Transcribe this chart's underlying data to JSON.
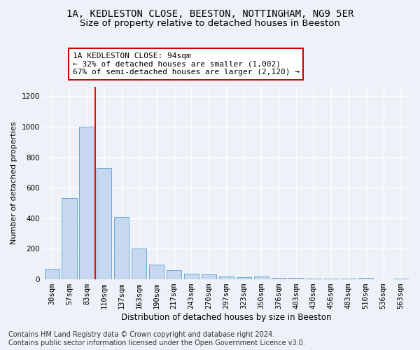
{
  "title_line1": "1A, KEDLESTON CLOSE, BEESTON, NOTTINGHAM, NG9 5ER",
  "title_line2": "Size of property relative to detached houses in Beeston",
  "xlabel": "Distribution of detached houses by size in Beeston",
  "ylabel": "Number of detached properties",
  "categories": [
    "30sqm",
    "57sqm",
    "83sqm",
    "110sqm",
    "137sqm",
    "163sqm",
    "190sqm",
    "217sqm",
    "243sqm",
    "270sqm",
    "297sqm",
    "323sqm",
    "350sqm",
    "376sqm",
    "403sqm",
    "430sqm",
    "456sqm",
    "483sqm",
    "510sqm",
    "536sqm",
    "563sqm"
  ],
  "values": [
    70,
    530,
    1000,
    730,
    410,
    200,
    95,
    60,
    38,
    33,
    20,
    15,
    18,
    10,
    8,
    5,
    5,
    4,
    10,
    2,
    3
  ],
  "bar_color": "#c5d8f0",
  "bar_edge_color": "#6aaad4",
  "red_line_x": 2.5,
  "annotation_text": "1A KEDLESTON CLOSE: 94sqm\n← 32% of detached houses are smaller (1,002)\n67% of semi-detached houses are larger (2,120) →",
  "annotation_box_color": "#ffffff",
  "annotation_box_edge_color": "#cc0000",
  "ylim": [
    0,
    1260
  ],
  "yticks": [
    0,
    200,
    400,
    600,
    800,
    1000,
    1200
  ],
  "footnote": "Contains HM Land Registry data © Crown copyright and database right 2024.\nContains public sector information licensed under the Open Government Licence v3.0.",
  "background_color": "#eef2f8",
  "plot_bg_color": "#eef2f8",
  "title_fontsize": 10,
  "subtitle_fontsize": 9.5,
  "tick_fontsize": 7.5,
  "footnote_fontsize": 7
}
